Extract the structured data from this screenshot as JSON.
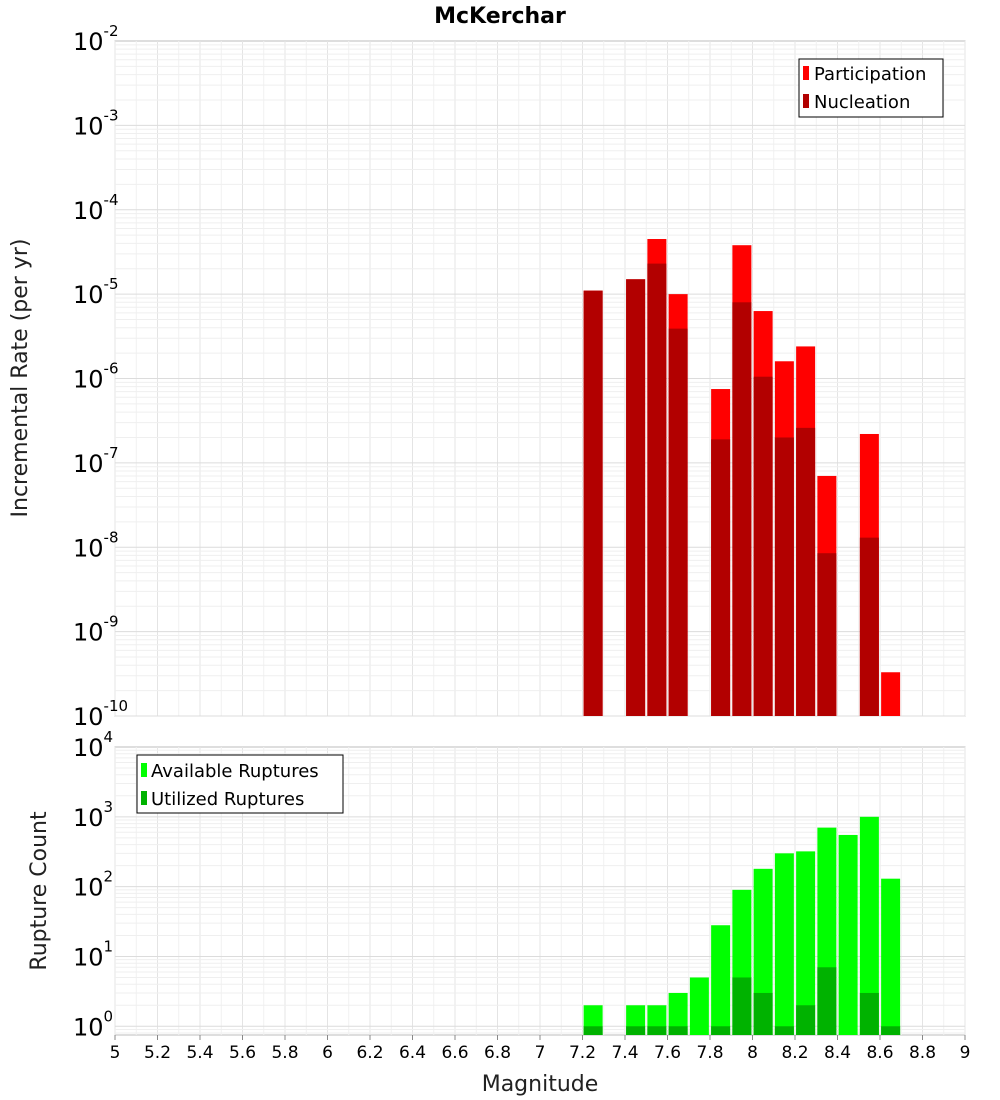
{
  "chart_data": [
    {
      "type": "bar",
      "title": "McKerchar",
      "ylabel": "Incremental Rate (per yr)",
      "xlabel": "",
      "yscale": "log",
      "ylim": [
        1e-10,
        0.01
      ],
      "xlim": [
        5,
        9
      ],
      "grid": true,
      "legend_position": "top-right",
      "x": [
        7.25,
        7.45,
        7.55,
        7.65,
        7.85,
        7.95,
        8.05,
        8.15,
        8.25,
        8.35,
        8.55,
        8.65
      ],
      "series": [
        {
          "name": "Participation",
          "color": "#ff0000",
          "values": [
            1.1e-05,
            1.5e-05,
            4.5e-05,
            1e-05,
            7.5e-07,
            3.8e-05,
            6.3e-06,
            1.6e-06,
            2.4e-06,
            7e-08,
            2.2e-07,
            3.3e-10
          ]
        },
        {
          "name": "Nucleation",
          "color": "#b20000",
          "values": [
            1.1e-05,
            1.5e-05,
            2.3e-05,
            3.9e-06,
            1.9e-07,
            8e-06,
            1.05e-06,
            2e-07,
            2.6e-07,
            8.5e-09,
            1.3e-08,
            null
          ]
        }
      ]
    },
    {
      "type": "bar",
      "title": "",
      "ylabel": "Rupture Count",
      "xlabel": "Magnitude",
      "yscale": "log",
      "ylim": [
        0.75,
        10000
      ],
      "xlim": [
        5,
        9
      ],
      "grid": true,
      "legend_position": "top-left",
      "x": [
        7.25,
        7.45,
        7.55,
        7.65,
        7.75,
        7.85,
        7.95,
        8.05,
        8.15,
        8.25,
        8.35,
        8.45,
        8.55,
        8.65
      ],
      "series": [
        {
          "name": "Available Ruptures",
          "color": "#00ff00",
          "values": [
            2,
            2,
            2,
            3,
            5,
            28,
            90,
            180,
            300,
            320,
            700,
            550,
            1000,
            130
          ]
        },
        {
          "name": "Utilized Ruptures",
          "color": "#00b200",
          "values": [
            1,
            1,
            1,
            1,
            null,
            1,
            5,
            3,
            1,
            2,
            7,
            null,
            3,
            1
          ]
        }
      ],
      "xticks": [
        "5",
        "5.2",
        "5.4",
        "5.6",
        "5.8",
        "6",
        "6.2",
        "6.4",
        "6.6",
        "6.8",
        "7",
        "7.2",
        "7.4",
        "7.6",
        "7.8",
        "8",
        "8.2",
        "8.4",
        "8.6",
        "8.8",
        "9"
      ]
    }
  ],
  "yticks_top": [
    {
      "base": "10",
      "exp": "-10"
    },
    {
      "base": "10",
      "exp": "-9"
    },
    {
      "base": "10",
      "exp": "-8"
    },
    {
      "base": "10",
      "exp": "-7"
    },
    {
      "base": "10",
      "exp": "-6"
    },
    {
      "base": "10",
      "exp": "-5"
    },
    {
      "base": "10",
      "exp": "-4"
    },
    {
      "base": "10",
      "exp": "-3"
    },
    {
      "base": "10",
      "exp": "-2"
    }
  ],
  "yticks_bottom": [
    {
      "base": "10",
      "exp": "0"
    },
    {
      "base": "10",
      "exp": "1"
    },
    {
      "base": "10",
      "exp": "2"
    },
    {
      "base": "10",
      "exp": "3"
    },
    {
      "base": "10",
      "exp": "4"
    }
  ]
}
